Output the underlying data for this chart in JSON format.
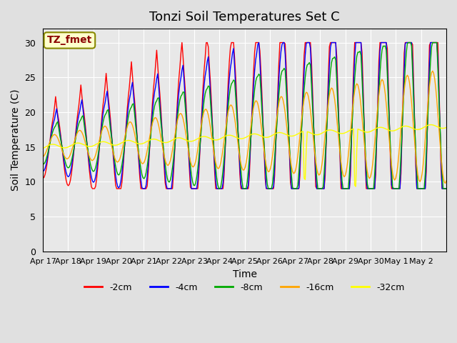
{
  "title": "Tonzi Soil Temperatures Set C",
  "xlabel": "Time",
  "ylabel": "Soil Temperature (C)",
  "annotation": "TZ_fmet",
  "annotation_color": "#8B0000",
  "annotation_bg": "#FFFFCC",
  "ylim": [
    0,
    32
  ],
  "yticks": [
    0,
    5,
    10,
    15,
    20,
    25,
    30
  ],
  "background_color": "#E8E8E8",
  "series": [
    {
      "label": "-2cm",
      "color": "#FF0000"
    },
    {
      "label": "-4cm",
      "color": "#0000FF"
    },
    {
      "label": "-8cm",
      "color": "#00AA00"
    },
    {
      "label": "-16cm",
      "color": "#FFA500"
    },
    {
      "label": "-32cm",
      "color": "#FFFF00"
    }
  ],
  "xtick_labels": [
    "Apr 17",
    "Apr 18",
    "Apr 19",
    "Apr 20",
    "Apr 21",
    "Apr 22",
    "Apr 23",
    "Apr 24",
    "Apr 25",
    "Apr 26",
    "Apr 27",
    "Apr 28",
    "Apr 29",
    "Apr 30",
    "May 1",
    "May 2"
  ],
  "n_days": 16,
  "points_per_day": 24
}
